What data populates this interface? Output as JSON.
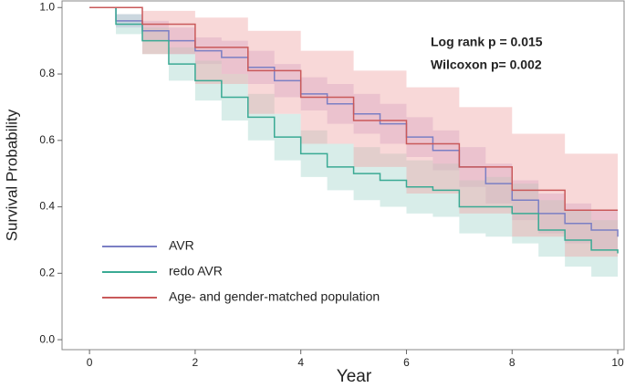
{
  "chart_data": {
    "type": "step",
    "x_label": "Year",
    "y_label": "Survival Probability",
    "annotations": [
      "Log rank p = 0.015",
      "Wilcoxon p= 0.002"
    ],
    "xlim": [
      -0.52,
      10.12
    ],
    "ylim": [
      -0.03,
      1.02
    ],
    "xticks": [
      0,
      2,
      4,
      6,
      8,
      10
    ],
    "yticks": [
      {
        "value": 0,
        "label": "0.0"
      },
      0.2,
      0.4,
      0.6,
      0.8,
      {
        "value": 1,
        "label": "1.0"
      }
    ],
    "legend": "bottom-left",
    "series": [
      {
        "name": "AVR",
        "color": "#7b7fc4",
        "band_color": "#c9a9d6",
        "x": [
          0,
          0.5,
          1,
          1.5,
          2,
          2.5,
          3,
          3.5,
          4,
          4.5,
          5,
          5.5,
          6,
          6.5,
          7,
          7.5,
          8,
          8.5,
          9,
          9.5,
          10
        ],
        "values": [
          1,
          0.96,
          0.93,
          0.9,
          0.87,
          0.85,
          0.82,
          0.78,
          0.74,
          0.71,
          0.68,
          0.65,
          0.61,
          0.57,
          0.52,
          0.47,
          0.42,
          0.38,
          0.35,
          0.33,
          0.31
        ],
        "lower": [
          1,
          0.94,
          0.9,
          0.86,
          0.83,
          0.8,
          0.77,
          0.73,
          0.69,
          0.65,
          0.62,
          0.59,
          0.55,
          0.51,
          0.46,
          0.41,
          0.36,
          0.32,
          0.29,
          0.27,
          0.25
        ],
        "upper": [
          1,
          0.98,
          0.96,
          0.94,
          0.91,
          0.9,
          0.87,
          0.83,
          0.79,
          0.77,
          0.74,
          0.71,
          0.67,
          0.63,
          0.58,
          0.53,
          0.48,
          0.44,
          0.41,
          0.39,
          0.37
        ]
      },
      {
        "name": "redo AVR",
        "color": "#3aaa94",
        "band_color": "#a9d8cf",
        "x": [
          0,
          0.5,
          1,
          1.5,
          2,
          2.5,
          3,
          3.5,
          4,
          4.5,
          5,
          5.5,
          6,
          6.5,
          7,
          7.5,
          8,
          8.5,
          9,
          9.5,
          10
        ],
        "values": [
          1,
          0.95,
          0.9,
          0.83,
          0.78,
          0.73,
          0.67,
          0.61,
          0.56,
          0.52,
          0.5,
          0.48,
          0.46,
          0.45,
          0.4,
          0.4,
          0.38,
          0.33,
          0.3,
          0.27,
          0.26
        ],
        "lower": [
          1,
          0.92,
          0.86,
          0.78,
          0.72,
          0.66,
          0.6,
          0.54,
          0.49,
          0.45,
          0.42,
          0.4,
          0.38,
          0.37,
          0.32,
          0.31,
          0.29,
          0.25,
          0.22,
          0.19,
          0.17
        ],
        "upper": [
          1,
          0.98,
          0.94,
          0.88,
          0.84,
          0.8,
          0.74,
          0.68,
          0.63,
          0.59,
          0.58,
          0.56,
          0.54,
          0.53,
          0.48,
          0.49,
          0.47,
          0.42,
          0.39,
          0.36,
          0.35
        ]
      },
      {
        "name": "Age- and gender-matched population",
        "color": "#c9595a",
        "band_color": "#efa9a9",
        "x": [
          0,
          1,
          2,
          3,
          4,
          5,
          6,
          7,
          8,
          9,
          10
        ],
        "values": [
          1,
          0.95,
          0.88,
          0.81,
          0.73,
          0.66,
          0.59,
          0.52,
          0.45,
          0.39,
          0.39
        ],
        "lower": [
          1,
          0.86,
          0.77,
          0.68,
          0.59,
          0.52,
          0.44,
          0.38,
          0.31,
          0.25,
          0.25
        ],
        "upper": [
          1,
          0.99,
          0.97,
          0.93,
          0.87,
          0.81,
          0.76,
          0.7,
          0.62,
          0.56,
          0.56
        ]
      }
    ]
  }
}
